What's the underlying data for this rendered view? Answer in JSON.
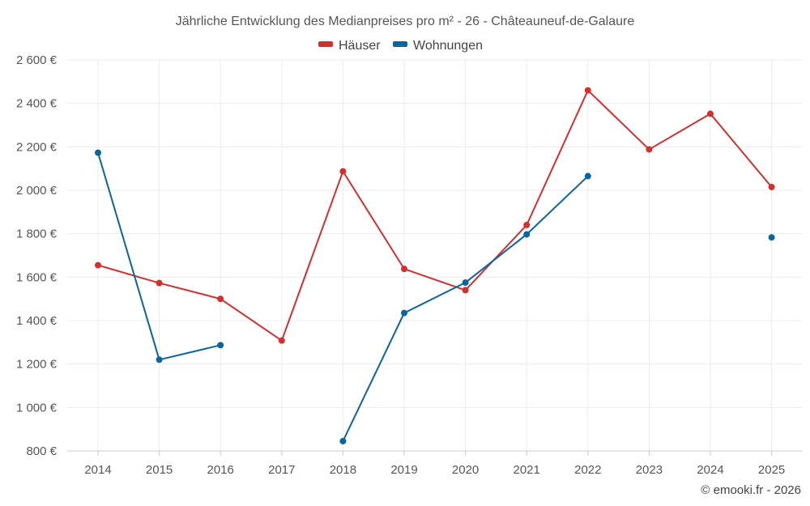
{
  "chart_data": {
    "type": "line",
    "title": "Jährliche Entwicklung des Medianpreises pro m² - 26 - Châteauneuf-de-Galaure",
    "categories": [
      "2014",
      "2015",
      "2016",
      "2017",
      "2018",
      "2019",
      "2020",
      "2021",
      "2022",
      "2023",
      "2024",
      "2025"
    ],
    "series": [
      {
        "name": "Häuser",
        "color": "#d32f2f",
        "values": [
          1655,
          1573,
          1500,
          1308,
          2087,
          1638,
          1540,
          1840,
          2460,
          2188,
          2352,
          2015
        ]
      },
      {
        "name": "Wohnungen",
        "color": "#0a64a0",
        "values": [
          2173,
          1220,
          1287,
          null,
          845,
          1435,
          1575,
          1797,
          2065,
          null,
          null,
          1783
        ]
      }
    ],
    "ylim": [
      800,
      2600
    ],
    "yticks": [
      800,
      1000,
      1200,
      1400,
      1600,
      1800,
      2000,
      2200,
      2400,
      2600
    ],
    "ytick_labels": [
      "800 €",
      "1 000 €",
      "1 200 €",
      "1 400 €",
      "1 600 €",
      "1 800 €",
      "2 000 €",
      "2 200 €",
      "2 400 €",
      "2 600 €"
    ],
    "xlabel": "",
    "ylabel": "",
    "grid": true,
    "legend_position": "top-center",
    "credit": "© emooki.fr - 2026"
  }
}
